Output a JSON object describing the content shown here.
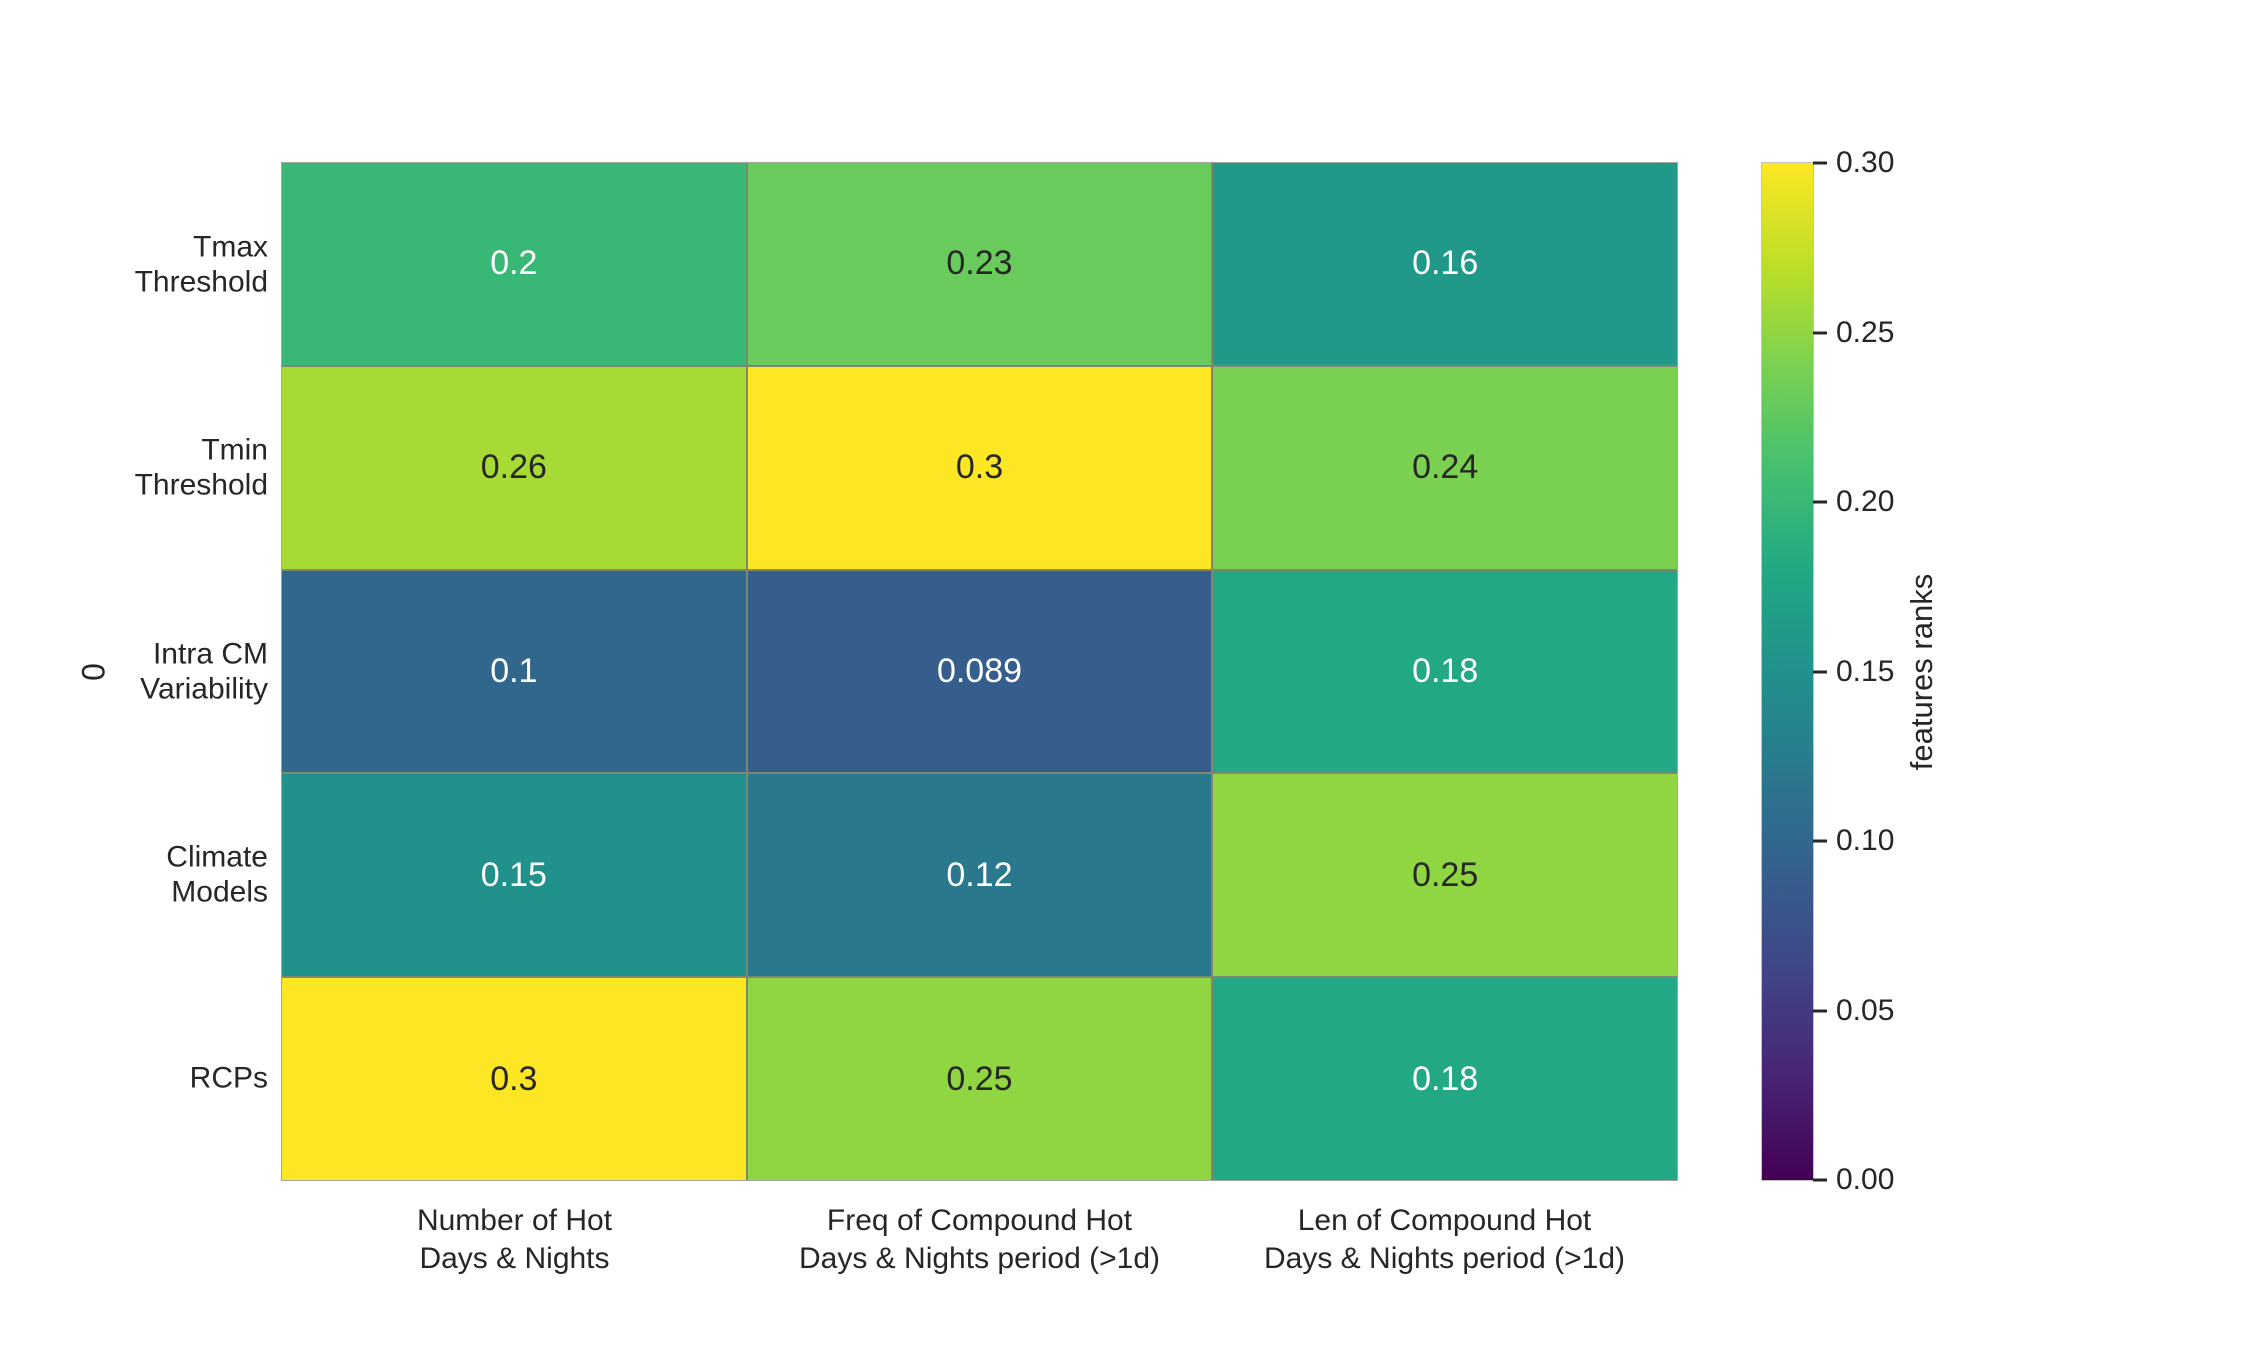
{
  "chart_data": {
    "type": "heatmap",
    "title": "",
    "ylabel": "0",
    "rows": [
      "Tmax\nThreshold",
      "Tmin\nThreshold",
      "Intra CM\nVariability",
      "Climate\nModels",
      "RCPs"
    ],
    "columns": [
      "Number of Hot\nDays & Nights",
      "Freq of Compound Hot\nDays & Nights period (>1d)",
      "Len of Compound Hot\nDays & Nights period (>1d)"
    ],
    "values": [
      [
        0.2,
        0.23,
        0.16
      ],
      [
        0.26,
        0.3,
        0.24
      ],
      [
        0.1,
        0.089,
        0.18
      ],
      [
        0.15,
        0.12,
        0.25
      ],
      [
        0.3,
        0.25,
        0.18
      ]
    ],
    "annotations": [
      [
        "0.2",
        "0.23",
        "0.16"
      ],
      [
        "0.26",
        "0.3",
        "0.24"
      ],
      [
        "0.1",
        "0.089",
        "0.18"
      ],
      [
        "0.15",
        "0.12",
        "0.25"
      ],
      [
        "0.3",
        "0.25",
        "0.18"
      ]
    ],
    "vmin": 0.0,
    "vmax": 0.3,
    "colorbar": {
      "label": "features ranks",
      "ticks": [
        "0.30",
        "0.25",
        "0.20",
        "0.15",
        "0.10",
        "0.05",
        "0.00"
      ]
    },
    "colormap": {
      "name": "viridis",
      "anchors": [
        "#440154",
        "#482475",
        "#414487",
        "#355f8d",
        "#2a788e",
        "#21918c",
        "#22a884",
        "#44bf70",
        "#7ad151",
        "#bddf26",
        "#fde725"
      ]
    },
    "annotation_text_colors": {
      "dark": "#262626",
      "light": "#ffffff"
    },
    "grid_line_color": "#7d8771",
    "legend_position": "right",
    "grid": false
  }
}
